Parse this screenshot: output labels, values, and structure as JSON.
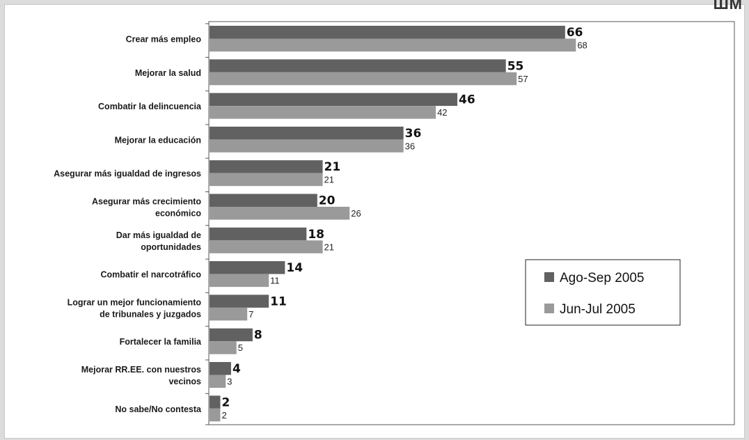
{
  "corner_text": "ШМ",
  "colors": {
    "series_a": "#616161",
    "series_b": "#9a9a9a",
    "plot_border": "#555555",
    "plot_bg": "#ffffff"
  },
  "chart_data": {
    "type": "bar",
    "orientation": "horizontal",
    "title": "",
    "xlabel": "",
    "ylabel": "",
    "xlim": [
      0,
      70
    ],
    "grid": false,
    "legend_position": "right",
    "categories": [
      [
        "Crear más empleo"
      ],
      [
        "Mejorar la salud"
      ],
      [
        "Combatir la delincuencia"
      ],
      [
        "Mejorar la educación"
      ],
      [
        "Asegurar más igualdad de ingresos"
      ],
      [
        "Asegurar más crecimiento",
        "económico"
      ],
      [
        "Dar más igualdad de",
        "oportunidades"
      ],
      [
        "Combatir el narcotráfico"
      ],
      [
        "Lograr un mejor funcionamiento",
        "de tribunales y juzgados"
      ],
      [
        "Fortalecer la familia"
      ],
      [
        "Mejorar RR.EE. con nuestros",
        "vecinos"
      ],
      [
        "No sabe/No contesta"
      ]
    ],
    "series": [
      {
        "name": "Ago-Sep 2005",
        "values": [
          66,
          55,
          46,
          36,
          21,
          20,
          18,
          14,
          11,
          8,
          4,
          2
        ]
      },
      {
        "name": "Jun-Jul 2005",
        "values": [
          68,
          57,
          42,
          36,
          21,
          26,
          21,
          11,
          7,
          5,
          3,
          2
        ]
      }
    ]
  }
}
